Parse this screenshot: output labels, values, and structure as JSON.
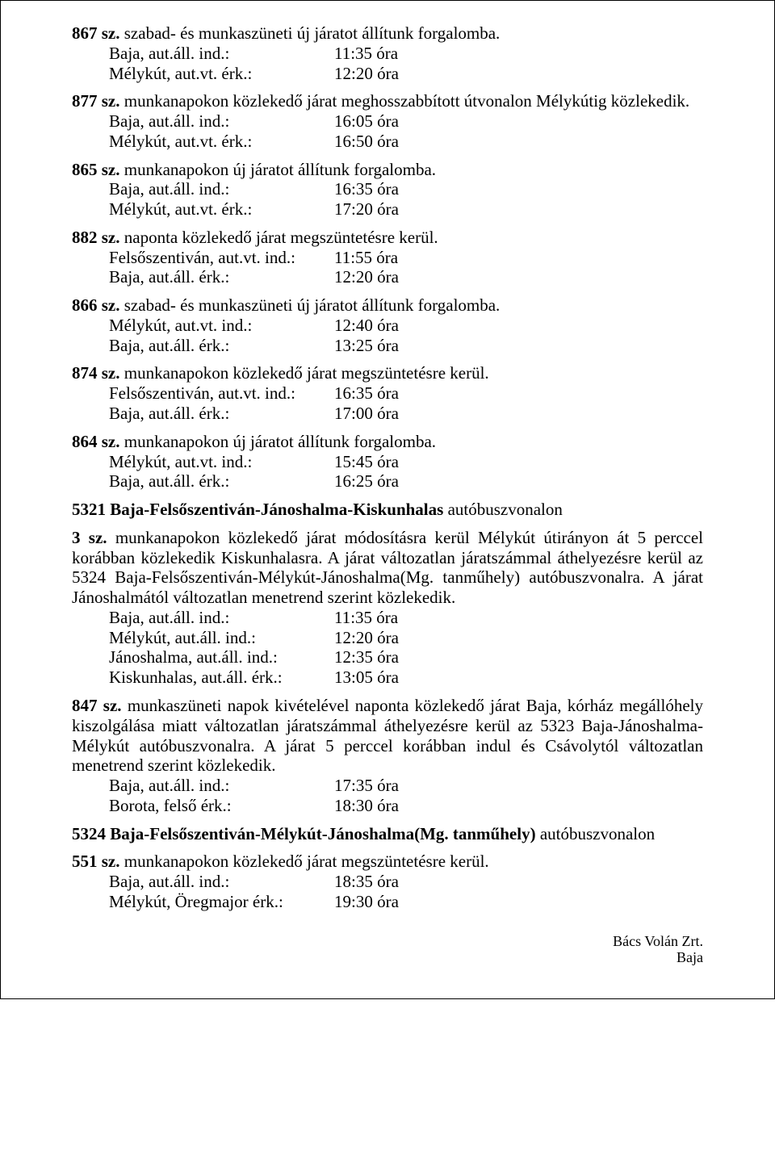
{
  "entries": [
    {
      "header_parts": [
        {
          "text": "867 sz.",
          "bold": true
        },
        {
          "text": " szabad- és munkaszüneti új járatot állítunk forgalomba.",
          "bold": false
        }
      ],
      "rows": [
        {
          "left": "Baja, aut.áll. ind.:",
          "right": "11:35 óra"
        },
        {
          "left": "Mélykút, aut.vt. érk.:",
          "right": "12:20 óra"
        }
      ]
    },
    {
      "header_parts": [
        {
          "text": "877 sz.",
          "bold": true
        },
        {
          "text": " munkanapokon közlekedő járat meghosszabbított útvonalon Mélykútig közlekedik.",
          "bold": false
        }
      ],
      "rows": [
        {
          "left": "Baja, aut.áll. ind.:",
          "right": "16:05 óra"
        },
        {
          "left": "Mélykút, aut.vt. érk.:",
          "right": "16:50 óra"
        }
      ]
    },
    {
      "header_parts": [
        {
          "text": "865 sz.",
          "bold": true
        },
        {
          "text": " munkanapokon új járatot állítunk forgalomba.",
          "bold": false
        }
      ],
      "rows": [
        {
          "left": "Baja, aut.áll. ind.:",
          "right": "16:35 óra"
        },
        {
          "left": "Mélykút, aut.vt. érk.:",
          "right": "17:20 óra"
        }
      ]
    },
    {
      "header_parts": [
        {
          "text": "882 sz.",
          "bold": true
        },
        {
          "text": " naponta közlekedő járat megszüntetésre kerül.",
          "bold": false
        }
      ],
      "rows": [
        {
          "left": "Felsőszentiván, aut.vt. ind.:",
          "right": "11:55 óra"
        },
        {
          "left": "Baja, aut.áll. érk.:",
          "right": "12:20 óra"
        }
      ]
    },
    {
      "header_parts": [
        {
          "text": "866 sz.",
          "bold": true
        },
        {
          "text": " szabad- és munkaszüneti új járatot állítunk forgalomba.",
          "bold": false
        }
      ],
      "rows": [
        {
          "left": "Mélykút, aut.vt. ind.:",
          "right": "12:40 óra"
        },
        {
          "left": "Baja, aut.áll. érk.:",
          "right": "13:25 óra"
        }
      ]
    },
    {
      "header_parts": [
        {
          "text": "874 sz.",
          "bold": true
        },
        {
          "text": " munkanapokon közlekedő járat megszüntetésre kerül.",
          "bold": false
        }
      ],
      "rows": [
        {
          "left": "Felsőszentiván, aut.vt. ind.:",
          "right": "16:35 óra"
        },
        {
          "left": "Baja, aut.áll. érk.:",
          "right": "17:00 óra"
        }
      ]
    },
    {
      "header_parts": [
        {
          "text": "864 sz.",
          "bold": true
        },
        {
          "text": " munkanapokon új járatot állítunk forgalomba.",
          "bold": false
        }
      ],
      "rows": [
        {
          "left": "Mélykút, aut.vt. ind.:",
          "right": "15:45 óra"
        },
        {
          "left": "Baja, aut.áll. érk.:",
          "right": "16:25 óra"
        }
      ]
    }
  ],
  "section1": {
    "title_parts": [
      {
        "text": "5321 Baja-Felsőszentiván-Jánoshalma-Kiskunhalas",
        "bold": true
      },
      {
        "text": " autóbuszvonalon",
        "bold": false
      }
    ]
  },
  "para1": {
    "pre_parts": [
      {
        "text": "3 sz.",
        "bold": true
      },
      {
        "text": " munkanapokon közlekedő járat módosításra kerül Mélykút útirányon át 5 perccel korábban közlekedik Kiskunhalasra. A járat változatlan járatszámmal áthelyezésre kerül az 5324 Baja-Felsőszentiván-Mélykút-Jánoshalma(Mg. tanműhely) autóbuszvonalra. A járat Jánoshalmától változatlan menetrend szerint közlekedik.",
        "bold": false
      }
    ],
    "rows": [
      {
        "left": "Baja, aut.áll. ind.:",
        "right": "11:35 óra"
      },
      {
        "left": "Mélykút, aut.áll. ind.:",
        "right": "12:20 óra"
      },
      {
        "left": "Jánoshalma, aut.áll. ind.:",
        "right": "12:35 óra"
      },
      {
        "left": "Kiskunhalas, aut.áll. érk.:",
        "right": "13:05 óra"
      }
    ]
  },
  "para2": {
    "pre_parts": [
      {
        "text": "847 sz.",
        "bold": true
      },
      {
        "text": " munkaszüneti napok kivételével naponta közlekedő járat Baja, kórház megállóhely kiszolgálása miatt változatlan járatszámmal áthelyezésre kerül az 5323 Baja-Jánoshalma-Mélykút autóbuszvonalra. A járat 5 perccel korábban indul és Csávolytól változatlan menetrend szerint közlekedik.",
        "bold": false
      }
    ],
    "rows": [
      {
        "left": "Baja, aut.áll. ind.:",
        "right": "17:35 óra"
      },
      {
        "left": "Borota, felső érk.:",
        "right": "18:30 óra"
      }
    ]
  },
  "section2": {
    "title_parts": [
      {
        "text": "5324 Baja-Felsőszentiván-Mélykút-Jánoshalma(Mg. tanműhely)",
        "bold": true
      },
      {
        "text": " autóbuszvonalon",
        "bold": false
      }
    ]
  },
  "para3": {
    "pre_parts": [
      {
        "text": "551 sz.",
        "bold": true
      },
      {
        "text": " munkanapokon közlekedő járat megszüntetésre kerül.",
        "bold": false
      }
    ],
    "rows": [
      {
        "left": "Baja, aut.áll. ind.:",
        "right": "18:35 óra"
      },
      {
        "left": "Mélykút, Öregmajor érk.:",
        "right": "19:30 óra"
      }
    ]
  },
  "footer": {
    "line1": "Bács Volán Zrt.",
    "line2": "Baja"
  }
}
